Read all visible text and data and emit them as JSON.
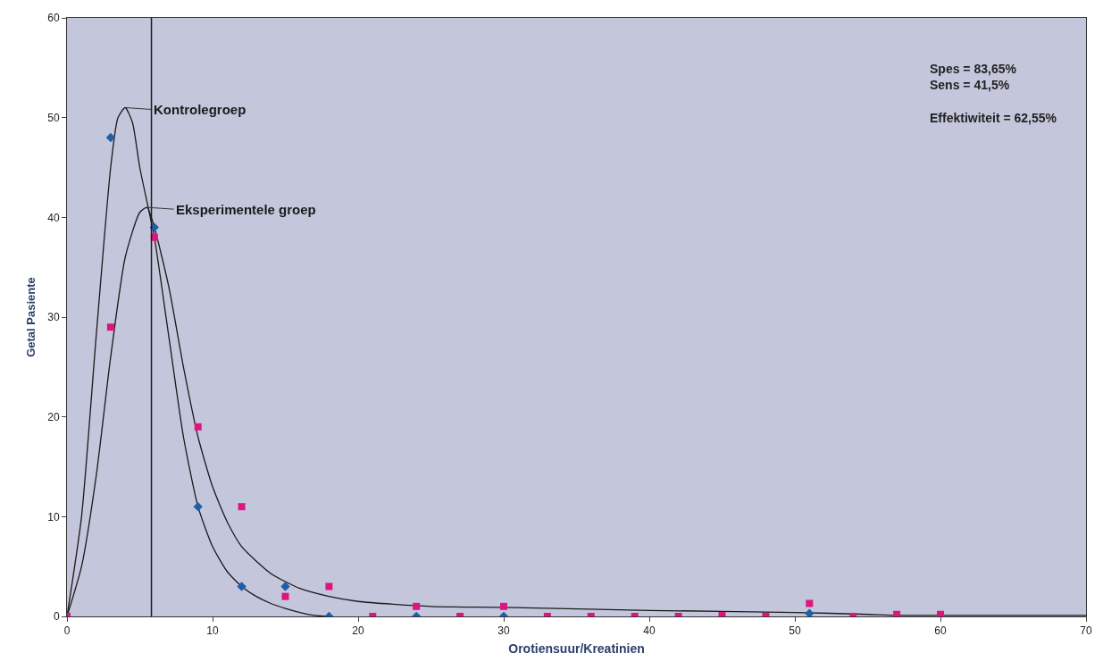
{
  "chart_data": {
    "type": "line",
    "xlabel": "Orotiensuur/Kreatinien",
    "ylabel": "Getal Pasiente",
    "xlim": [
      0,
      70
    ],
    "xticks": [
      0,
      10,
      20,
      30,
      40,
      50,
      60,
      70
    ],
    "ylim": [
      0,
      60
    ],
    "yticks": [
      0,
      10,
      20,
      30,
      40,
      50,
      60
    ],
    "grid": false,
    "legend": false,
    "series": [
      {
        "name": "Kontrolegroep",
        "color": "#1a1a1a",
        "marker": "none",
        "x": [
          0,
          1,
          2,
          3,
          3.5,
          4,
          4.5,
          5,
          6,
          7,
          8,
          9,
          10,
          11,
          12,
          13,
          14,
          15,
          16,
          17,
          18
        ],
        "values": [
          0,
          10,
          28,
          45,
          50,
          51,
          49.5,
          45,
          38,
          28,
          18,
          11,
          7,
          4.5,
          3,
          2,
          1.3,
          0.8,
          0.4,
          0.1,
          0
        ]
      },
      {
        "name": "Eksperimentele groep",
        "color": "#1a1a1a",
        "marker": "none",
        "x": [
          0,
          1,
          2,
          3,
          4,
          5,
          5.5,
          6,
          7,
          8,
          9,
          10,
          11,
          12,
          14,
          16,
          18,
          20,
          25,
          30,
          40,
          50,
          55,
          57,
          70
        ],
        "values": [
          0,
          5,
          14,
          26,
          36,
          40.5,
          41,
          39,
          33,
          25,
          18,
          13,
          9.5,
          7,
          4.3,
          2.8,
          2,
          1.5,
          1,
          0.9,
          0.6,
          0.4,
          0.2,
          0.1,
          0.1
        ]
      },
      {
        "type": "scatter",
        "color": "#1f5fa8",
        "marker": "diamond",
        "x": [
          3,
          6,
          9,
          12,
          15,
          18,
          24,
          30,
          51
        ],
        "values": [
          48,
          39,
          11,
          3,
          3,
          0,
          0,
          0,
          0.3
        ]
      },
      {
        "type": "scatter",
        "color": "#e0147e",
        "marker": "square",
        "x": [
          0,
          3,
          6,
          9,
          12,
          15,
          18,
          21,
          24,
          27,
          30,
          33,
          36,
          39,
          42,
          45,
          48,
          51,
          54,
          57,
          60
        ],
        "values": [
          0,
          29,
          38,
          19,
          11,
          2,
          3,
          0,
          1,
          0,
          1,
          0,
          0,
          0,
          0,
          0.1,
          0,
          1.3,
          0,
          0.2,
          0.2
        ]
      }
    ],
    "ref_lines": [
      {
        "axis": "x",
        "value": 5.8,
        "color": "#1a1a1a"
      }
    ],
    "annotations": [
      "Spes = 83,65%\nSens = 41,5%\n\nEffektiwiteit = 62,55%"
    ]
  }
}
